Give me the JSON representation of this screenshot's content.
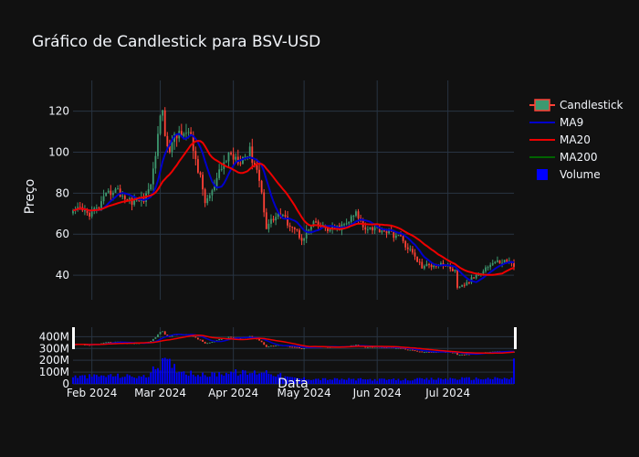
{
  "chart_data": {
    "type": "candlestick",
    "title": "Gráfico de Candlestick para BSV-USD",
    "ylabel": "Preço",
    "xlabel": "Data",
    "price_ylim": [
      28,
      135
    ],
    "price_yticks": [
      40,
      60,
      80,
      100,
      120
    ],
    "volume_ylim": [
      0,
      480000000
    ],
    "volume_yticks": [
      {
        "value": 0,
        "label": "0"
      },
      {
        "value": 100000000,
        "label": "100M"
      },
      {
        "value": 200000000,
        "label": "200M"
      },
      {
        "value": 300000000,
        "label": "300M"
      },
      {
        "value": 400000000,
        "label": "400M"
      }
    ],
    "x_range": [
      "2024-01-24",
      "2024-07-29"
    ],
    "x_ticks": [
      {
        "date": "2024-02-01",
        "label": "Feb 2024"
      },
      {
        "date": "2024-03-01",
        "label": "Mar 2024"
      },
      {
        "date": "2024-04-01",
        "label": "Apr 2024"
      },
      {
        "date": "2024-05-01",
        "label": "May 2024"
      },
      {
        "date": "2024-06-01",
        "label": "Jun 2024"
      },
      {
        "date": "2024-07-01",
        "label": "Jul 2024"
      }
    ],
    "legend": {
      "position": "top-right",
      "entries": [
        {
          "name": "Candlestick",
          "kind": "candle"
        },
        {
          "name": "MA9",
          "kind": "line",
          "color": "#0000cc"
        },
        {
          "name": "MA20",
          "kind": "line",
          "color": "#ee0000"
        },
        {
          "name": "MA200",
          "kind": "line",
          "color": "#006400"
        },
        {
          "name": "Volume",
          "kind": "bar",
          "color": "#0000ff"
        }
      ]
    },
    "colors": {
      "increasing": "#3d9970",
      "decreasing": "#ff4136",
      "ma9": "#0000cc",
      "ma20": "#ee0000",
      "ma200": "#006400",
      "volume": "#0000ff",
      "grid": "#283442",
      "background": "#111111"
    },
    "close_anchors": [
      [
        "2024-01-24",
        70
      ],
      [
        "2024-01-27",
        72
      ],
      [
        "2024-01-30",
        70
      ],
      [
        "2024-02-03",
        72
      ],
      [
        "2024-02-07",
        78
      ],
      [
        "2024-02-10",
        82
      ],
      [
        "2024-02-13",
        80
      ],
      [
        "2024-02-16",
        77
      ],
      [
        "2024-02-20",
        76
      ],
      [
        "2024-02-24",
        78
      ],
      [
        "2024-02-27",
        90
      ],
      [
        "2024-02-29",
        110
      ],
      [
        "2024-03-02",
        122
      ],
      [
        "2024-03-04",
        100
      ],
      [
        "2024-03-08",
        108
      ],
      [
        "2024-03-11",
        112
      ],
      [
        "2024-03-14",
        106
      ],
      [
        "2024-03-17",
        92
      ],
      [
        "2024-03-20",
        76
      ],
      [
        "2024-03-23",
        80
      ],
      [
        "2024-03-27",
        92
      ],
      [
        "2024-03-30",
        99
      ],
      [
        "2024-04-04",
        97
      ],
      [
        "2024-04-08",
        100
      ],
      [
        "2024-04-11",
        92
      ],
      [
        "2024-04-13",
        80
      ],
      [
        "2024-04-15",
        64
      ],
      [
        "2024-04-20",
        70
      ],
      [
        "2024-04-26",
        64
      ],
      [
        "2024-04-30",
        58
      ],
      [
        "2024-05-05",
        65
      ],
      [
        "2024-05-12",
        62
      ],
      [
        "2024-05-18",
        64
      ],
      [
        "2024-05-23",
        70
      ],
      [
        "2024-05-26",
        64
      ],
      [
        "2024-06-04",
        62
      ],
      [
        "2024-06-10",
        59
      ],
      [
        "2024-06-15",
        52
      ],
      [
        "2024-06-20",
        44
      ],
      [
        "2024-06-28",
        46
      ],
      [
        "2024-07-04",
        42
      ],
      [
        "2024-07-05",
        33
      ],
      [
        "2024-07-10",
        37
      ],
      [
        "2024-07-15",
        42
      ],
      [
        "2024-07-20",
        46
      ],
      [
        "2024-07-26",
        47
      ],
      [
        "2024-07-29",
        45
      ]
    ],
    "volume_anchors": [
      [
        "2024-01-24",
        60000000
      ],
      [
        "2024-02-10",
        70000000
      ],
      [
        "2024-02-24",
        60000000
      ],
      [
        "2024-02-29",
        150000000
      ],
      [
        "2024-03-03",
        190000000
      ],
      [
        "2024-03-10",
        110000000
      ],
      [
        "2024-03-20",
        70000000
      ],
      [
        "2024-03-30",
        100000000
      ],
      [
        "2024-04-08",
        90000000
      ],
      [
        "2024-04-14",
        110000000
      ],
      [
        "2024-04-25",
        50000000
      ],
      [
        "2024-05-10",
        40000000
      ],
      [
        "2024-06-10",
        35000000
      ],
      [
        "2024-07-05",
        45000000
      ],
      [
        "2024-07-28",
        45000000
      ],
      [
        "2024-07-29",
        190000000
      ]
    ]
  }
}
